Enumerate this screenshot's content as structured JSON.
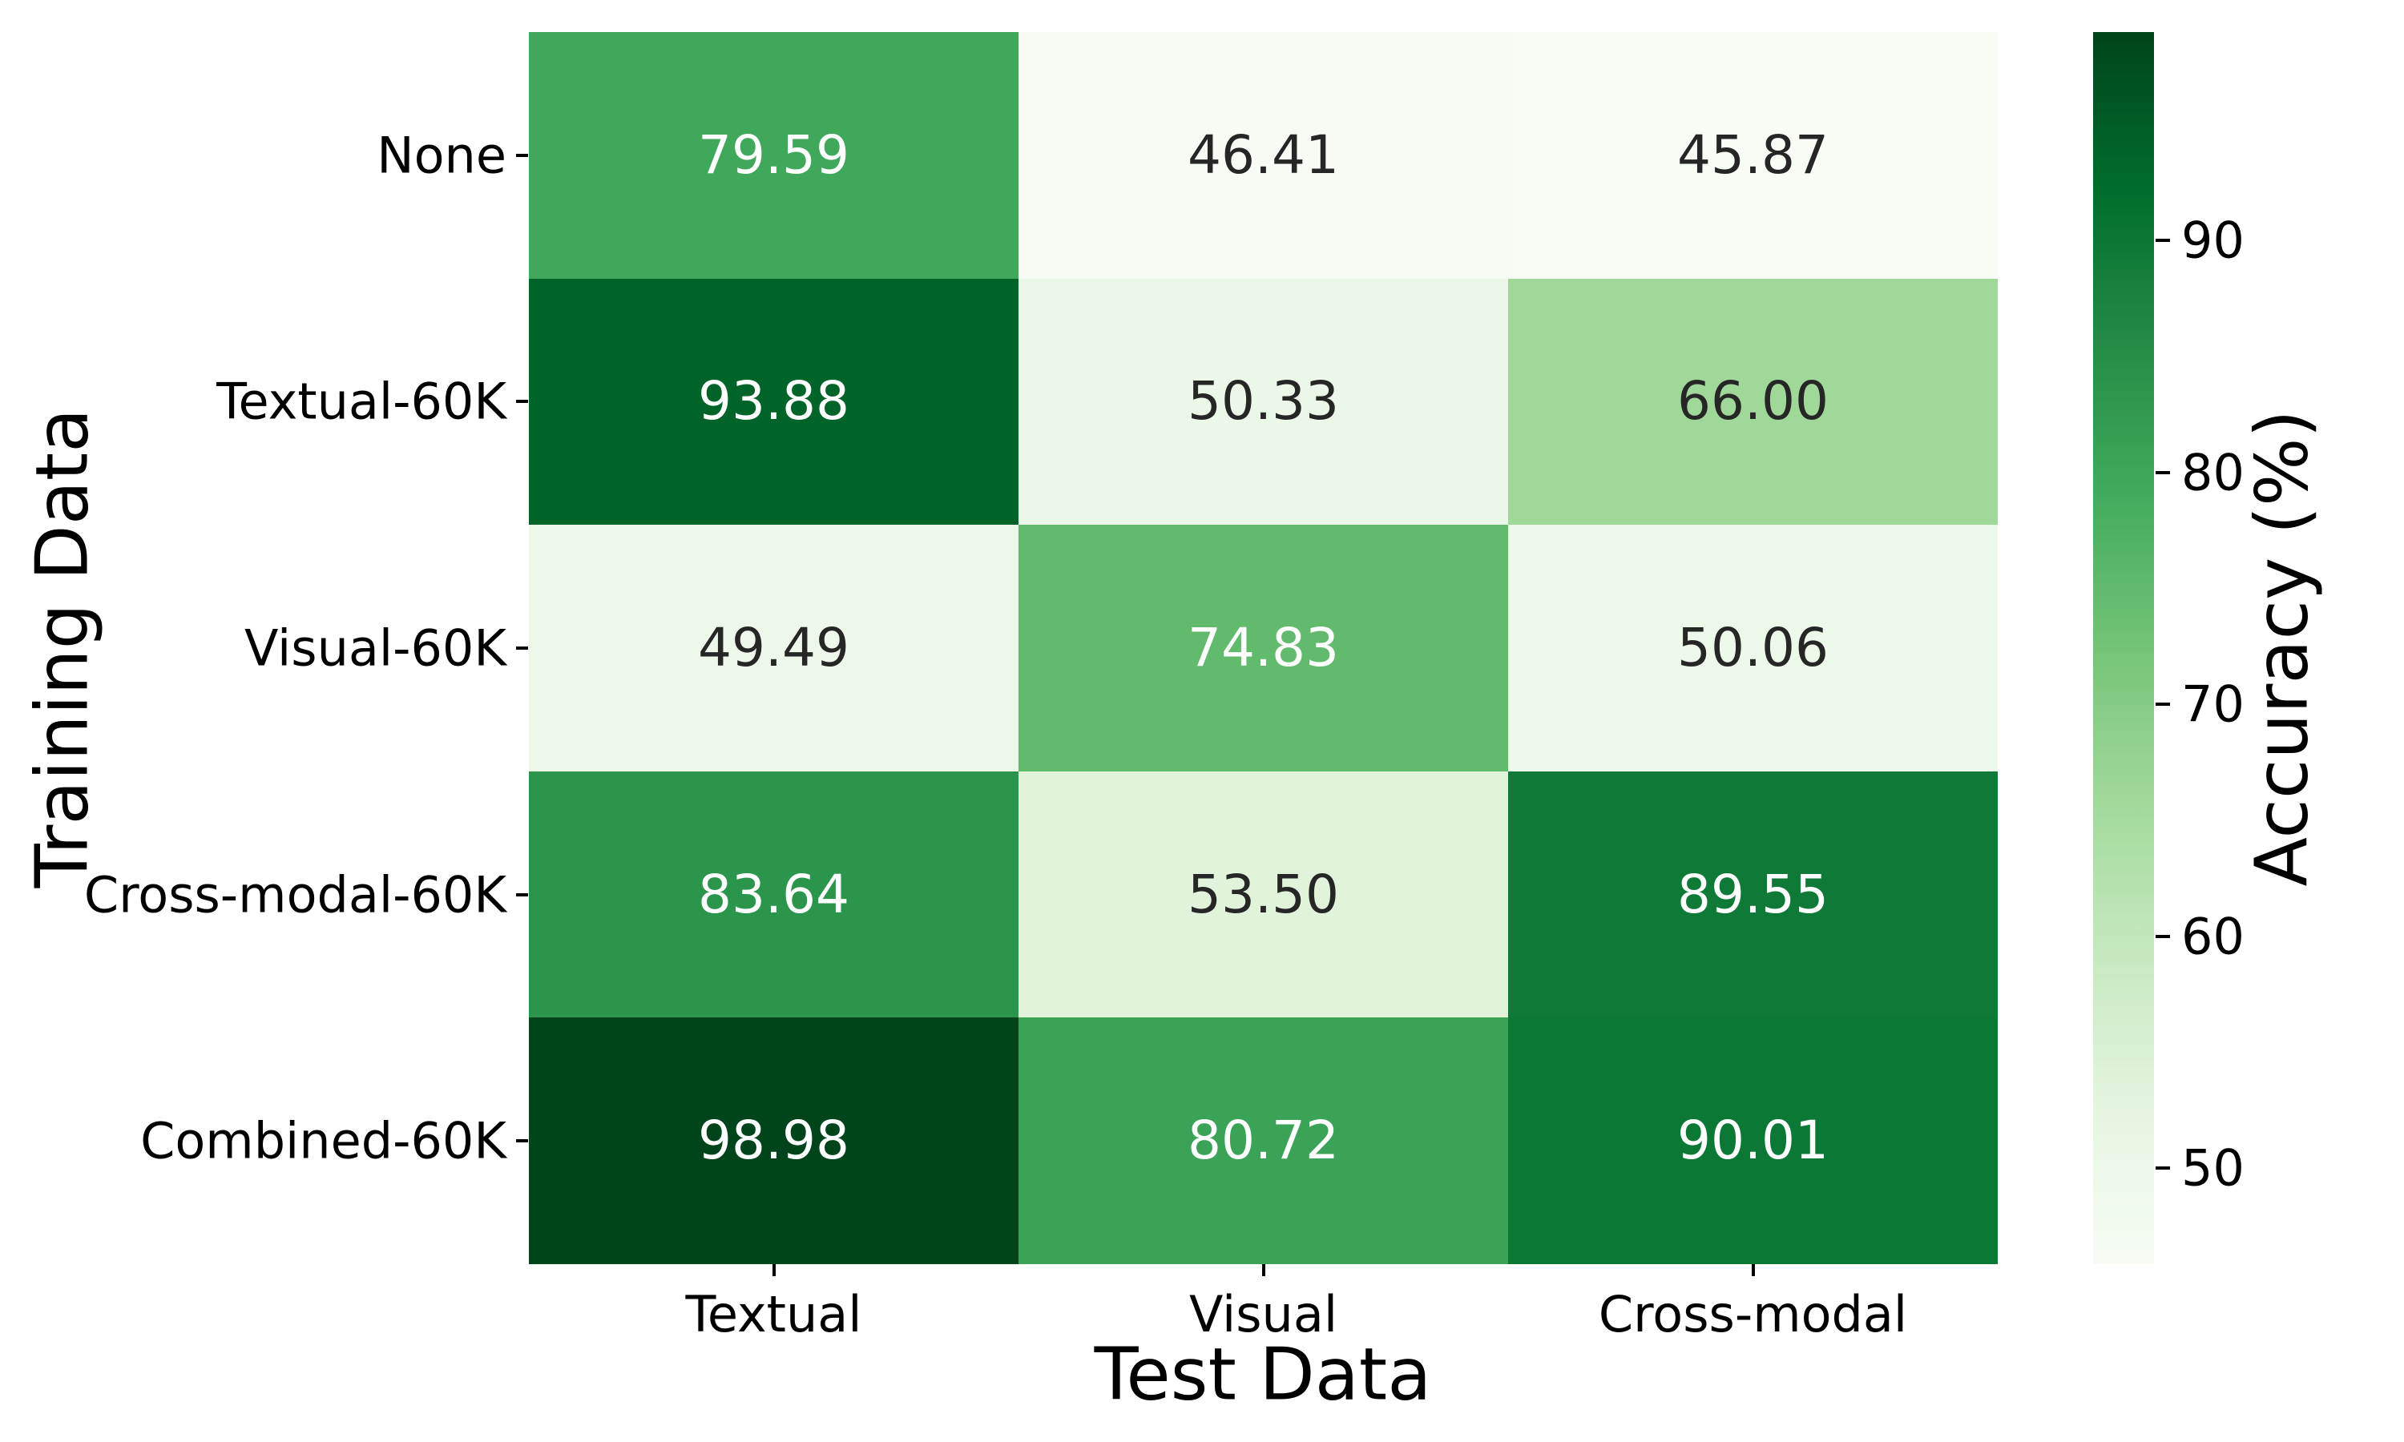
{
  "chart_data": {
    "type": "heatmap",
    "xlabel": "Test Data",
    "ylabel": "Training Data",
    "colorbar_label": "Accuracy (%)",
    "x_categories": [
      "Textual",
      "Visual",
      "Cross-modal"
    ],
    "y_categories": [
      "None",
      "Textual-60K",
      "Visual-60K",
      "Cross-modal-60K",
      "Combined-60K"
    ],
    "values": [
      [
        79.59,
        46.41,
        45.87
      ],
      [
        93.88,
        50.33,
        66.0
      ],
      [
        49.49,
        74.83,
        50.06
      ],
      [
        83.64,
        53.5,
        89.55
      ],
      [
        98.98,
        80.72,
        90.01
      ]
    ],
    "value_decimals": 2,
    "vmin": 45.87,
    "vmax": 98.98,
    "colorbar_ticks": [
      90,
      80,
      70,
      60,
      50
    ],
    "colormap_name": "Greens",
    "colormap_anchors": [
      "#f7fcf5",
      "#e5f5e0",
      "#c7e9c0",
      "#a1d99b",
      "#74c476",
      "#41ab5d",
      "#238b45",
      "#006d2c",
      "#00441b"
    ],
    "annot_color_on_light": "#262626",
    "annot_color_on_dark": "#ffffff",
    "grid": false,
    "legend_position": "right-colorbar",
    "background_color": "#ffffff"
  }
}
